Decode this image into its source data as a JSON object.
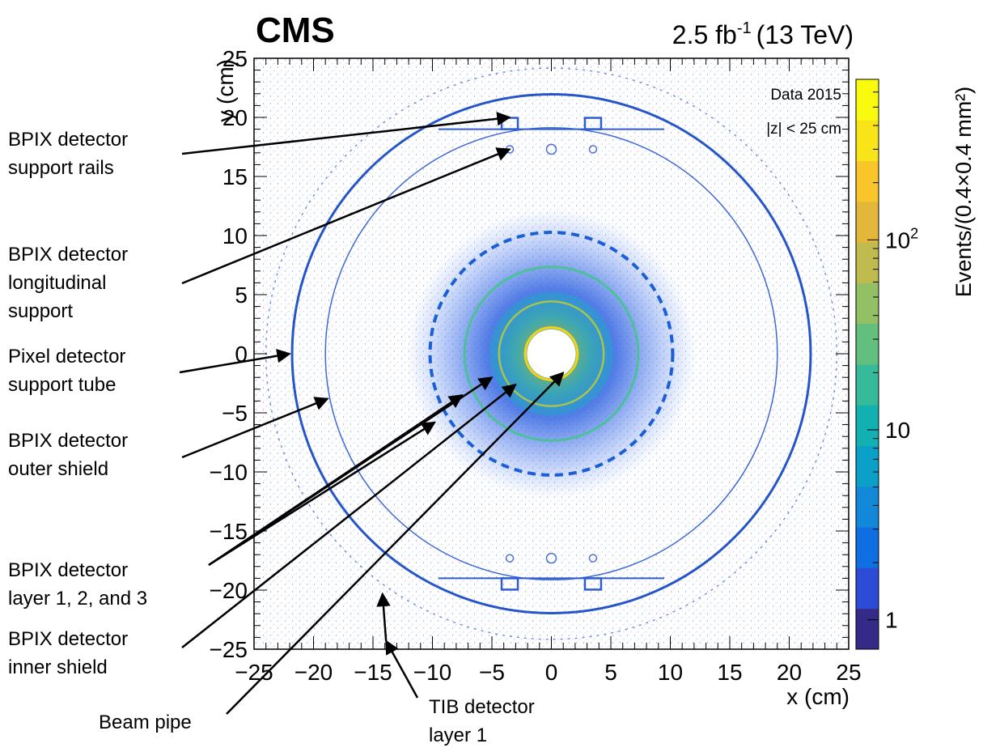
{
  "header": {
    "experiment": "CMS",
    "lumi_prefix": "2.5 fb",
    "lumi_exponent": "-1",
    "lumi_suffix": "(13 TeV)"
  },
  "chart_data": {
    "type": "heatmap",
    "title": "",
    "xlabel": "x (cm)",
    "ylabel": "y (cm)",
    "zlabel": "Events/(0.4×0.4 mm²)",
    "xlim": [
      -25,
      25
    ],
    "ylim": [
      -25,
      25
    ],
    "z_scale": "log",
    "zlim": [
      0.7,
      700
    ],
    "x_ticks": [
      -25,
      -20,
      -15,
      -10,
      -5,
      0,
      5,
      10,
      15,
      20,
      25
    ],
    "x_tick_labels": [
      "−25",
      "−20",
      "−15",
      "−10",
      "−5",
      "0",
      "5",
      "10",
      "15",
      "20",
      "25"
    ],
    "y_ticks": [
      25,
      20,
      15,
      10,
      5,
      0,
      -5,
      -10,
      -15,
      -20,
      -25
    ],
    "y_tick_labels": [
      "25",
      "20",
      "15",
      "10",
      "5",
      "0",
      "−5",
      "−10",
      "−15",
      "−20",
      "−25"
    ],
    "z_tick_labels": [
      {
        "value": 100,
        "base": "10",
        "exp": "2"
      },
      {
        "value": 10,
        "base": "10",
        "exp": ""
      },
      {
        "value": 1,
        "base": "1",
        "exp": ""
      }
    ],
    "legend_lines": [
      "Data 2015",
      "|z| < 25 cm"
    ],
    "palette": [
      "#352a87",
      "#2c4bd6",
      "#0f6fe0",
      "#1488d8",
      "#0ba0c8",
      "#12b0b0",
      "#36ba99",
      "#63bf7e",
      "#93bf65",
      "#c0bb4e",
      "#e3b73a",
      "#f9c52a",
      "#f8e418",
      "#f9fb0e"
    ],
    "structures": [
      {
        "name": "beam pipe",
        "radius": 2.2
      },
      {
        "name": "BPIX layer 1",
        "radius": 4.4
      },
      {
        "name": "BPIX layer 2",
        "radius": 7.3
      },
      {
        "name": "BPIX layer 3",
        "radius": 10.2
      },
      {
        "name": "BPIX outer shield",
        "radius": 19.0
      },
      {
        "name": "pixel support tube",
        "radius": 21.8
      },
      {
        "name": "TIB layer 1",
        "radius": 24.0
      }
    ],
    "annotations": [
      {
        "id": "support-rails",
        "lines": [
          "BPIX detector",
          "support rails"
        ],
        "target": [
          -3.5,
          20.0
        ]
      },
      {
        "id": "longitudinal-support",
        "lines": [
          "BPIX detector",
          "longitudinal",
          "support"
        ],
        "target": [
          -3.5,
          17.3
        ]
      },
      {
        "id": "support-tube",
        "lines": [
          "Pixel detector",
          "support tube"
        ],
        "target": [
          -22.0,
          0.0
        ]
      },
      {
        "id": "outer-shield",
        "lines": [
          "BPIX detector",
          "outer shield"
        ],
        "target": [
          -18.8,
          -3.8
        ]
      },
      {
        "id": "layers",
        "lines": [
          "BPIX detector",
          "layer 1, 2, and 3"
        ],
        "target": [
          [
            -9.8,
            -5.8
          ],
          [
            -7.5,
            -3.5
          ],
          [
            -5.0,
            -2.0
          ]
        ]
      },
      {
        "id": "inner-shield",
        "lines": [
          "BPIX detector",
          "inner shield"
        ],
        "target": [
          -3.0,
          -2.6
        ]
      },
      {
        "id": "beam-pipe",
        "lines": [
          "Beam pipe"
        ],
        "target": [
          1.0,
          -1.6
        ]
      },
      {
        "id": "tib",
        "lines": [
          "TIB detector",
          "layer 1"
        ],
        "target": [
          -13.9,
          -24.3
        ],
        "target2": [
          -14.2,
          -20.3
        ]
      }
    ]
  }
}
